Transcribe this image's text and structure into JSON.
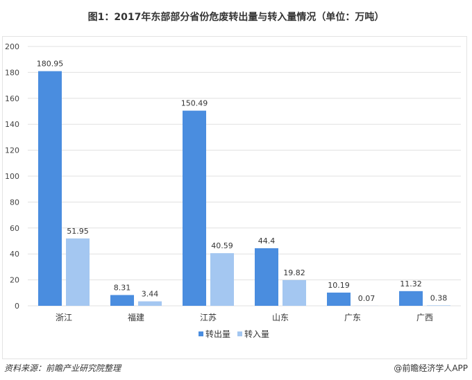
{
  "chart_data": {
    "type": "bar",
    "title": "图1：2017年东部部分省份危废转出量与转入量情况（单位：万吨）",
    "categories": [
      "浙江",
      "福建",
      "江苏",
      "山东",
      "广东",
      "广西"
    ],
    "series": [
      {
        "name": "转出量",
        "color": "#4a8ddf",
        "values": [
          180.95,
          8.31,
          150.49,
          44.4,
          10.19,
          11.32
        ]
      },
      {
        "name": "转入量",
        "color": "#a4c7f1",
        "values": [
          51.95,
          3.44,
          40.59,
          19.82,
          0.07,
          0.38
        ]
      }
    ],
    "value_labels": [
      [
        "180.95",
        "8.31",
        "150.49",
        "44.4",
        "10.19",
        "11.32"
      ],
      [
        "51.95",
        "3.44",
        "40.59",
        "19.82",
        "0.07",
        "0.38"
      ]
    ],
    "ylim": [
      0,
      200
    ],
    "yticks": [
      0,
      20,
      40,
      60,
      80,
      100,
      120,
      140,
      160,
      180,
      200
    ],
    "grid": true,
    "legend": "bottom"
  },
  "footer": {
    "source": "资料来源：前瞻产业研究院整理",
    "credit": "@前瞻经济学人APP"
  }
}
